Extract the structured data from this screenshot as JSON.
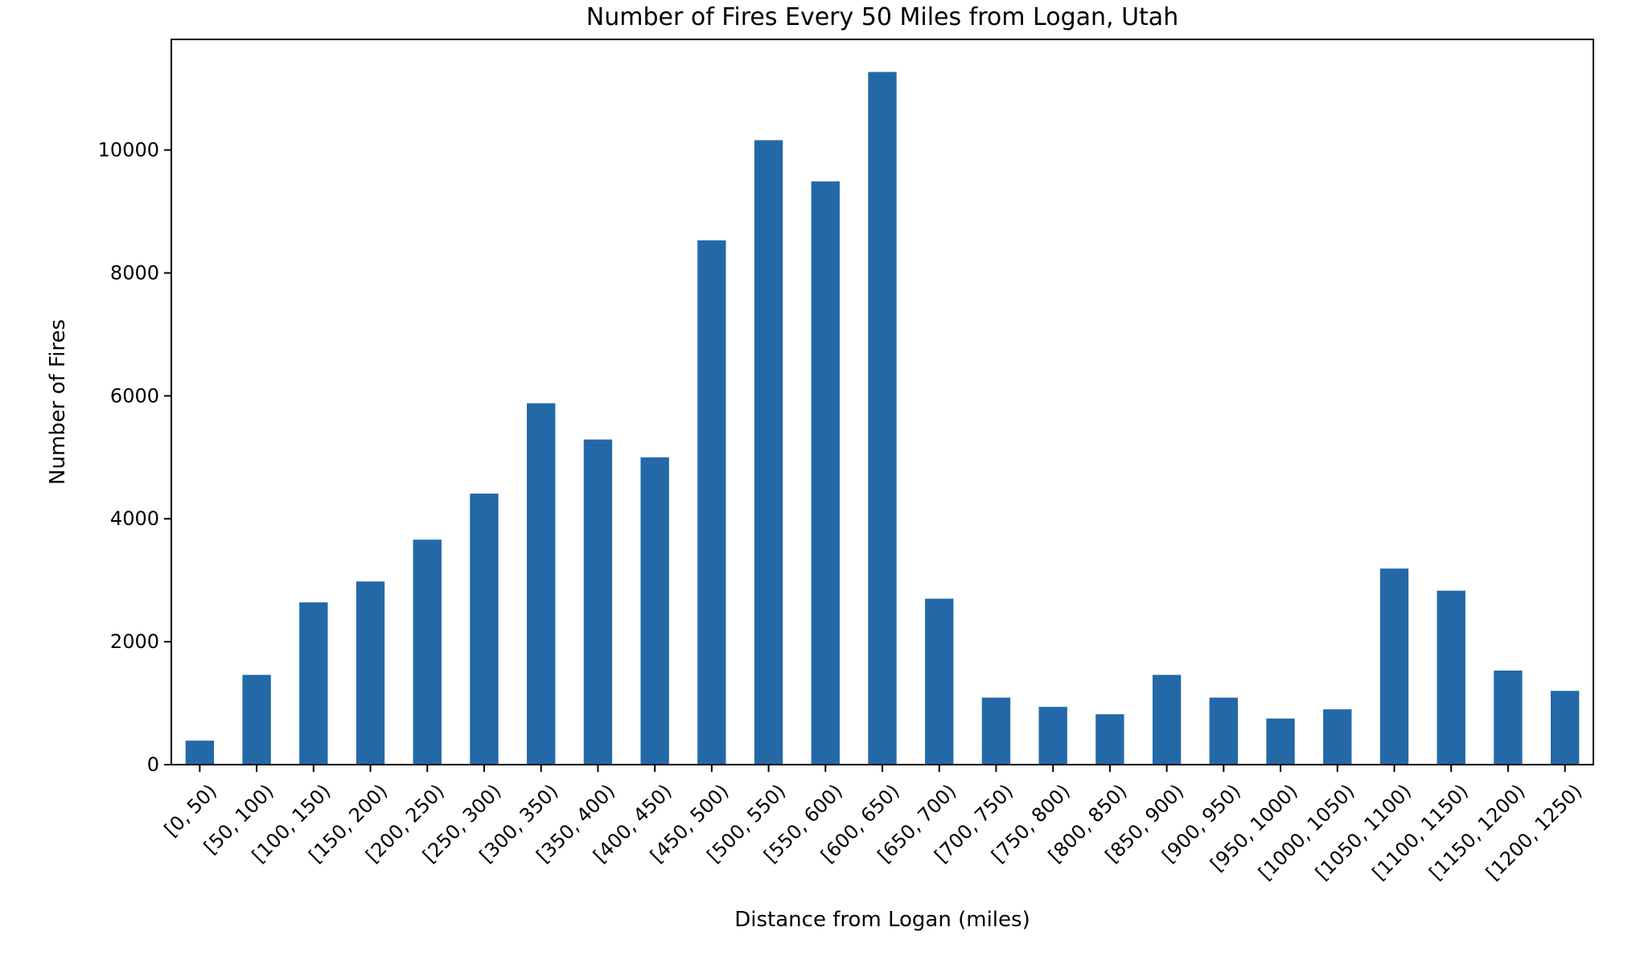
{
  "chart_data": {
    "type": "bar",
    "title": "Number of Fires Every 50 Miles from Logan, Utah",
    "xlabel": "Distance from Logan (miles)",
    "ylabel": "Number of Fires",
    "categories": [
      "[0, 50)",
      "[50, 100)",
      "[100, 150)",
      "[150, 200)",
      "[200, 250)",
      "[250, 300)",
      "[300, 350)",
      "[350, 400)",
      "[400, 450)",
      "[450, 500)",
      "[500, 550)",
      "[550, 600)",
      "[600, 650)",
      "[650, 700)",
      "[700, 750)",
      "[750, 800)",
      "[800, 850)",
      "[850, 900)",
      "[900, 950)",
      "[950, 1000)",
      "[1000, 1050)",
      "[1050, 1100)",
      "[1100, 1150)",
      "[1150, 1200)",
      "[1200, 1250)"
    ],
    "values": [
      390,
      1460,
      2640,
      2980,
      3660,
      4410,
      5880,
      5290,
      5000,
      8530,
      10160,
      9490,
      11270,
      2700,
      1090,
      940,
      820,
      1460,
      1090,
      750,
      900,
      3190,
      2830,
      1530,
      1200
    ],
    "ylim": [
      0,
      11800
    ],
    "yticks": [
      0,
      2000,
      4000,
      6000,
      8000,
      10000
    ],
    "ytick_labels": [
      "0",
      "2000",
      "4000",
      "6000",
      "8000",
      "10000"
    ],
    "bar_color": "#2369a8",
    "grid": false,
    "legend": false
  }
}
